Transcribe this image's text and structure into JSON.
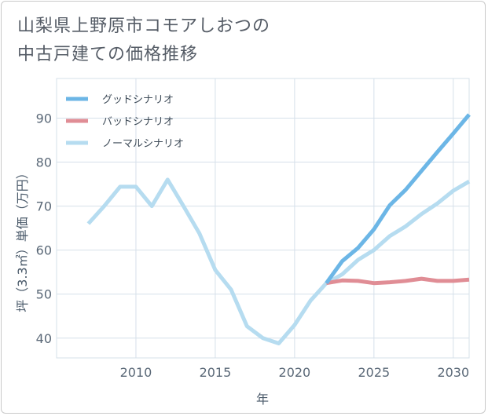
{
  "title": {
    "line1": "山梨県上野原市コモアしおつの",
    "line2": "中古戸建ての価格推移"
  },
  "chart_data": {
    "type": "line",
    "xlabel": "年",
    "ylabel": "坪（3.3㎡）単価（万円）",
    "xlim": [
      2005,
      2031
    ],
    "ylim": [
      35.5,
      99
    ],
    "xticks": [
      2010,
      2015,
      2020,
      2025,
      2030
    ],
    "yticks": [
      40,
      50,
      60,
      70,
      80,
      90
    ],
    "grid": true,
    "legend_position": "top-left",
    "series": [
      {
        "name": "グッドシナリオ",
        "color": "#6cb6e6",
        "x": [
          2022,
          2023,
          2024,
          2025,
          2026,
          2027,
          2028,
          2029,
          2030,
          2031
        ],
        "y": [
          52.5,
          57.5,
          60.5,
          64.7,
          70.2,
          73.7,
          78.0,
          82.3,
          86.5,
          90.8
        ]
      },
      {
        "name": "バッドシナリオ",
        "color": "#e08d95",
        "x": [
          2022,
          2023,
          2024,
          2025,
          2026,
          2027,
          2028,
          2029,
          2030,
          2031
        ],
        "y": [
          52.5,
          53.1,
          53.0,
          52.5,
          52.7,
          53.0,
          53.5,
          53.0,
          53.0,
          53.3
        ]
      },
      {
        "name": "ノーマルシナリオ",
        "color": "#b6dcf0",
        "x": [
          2007,
          2008,
          2009,
          2010,
          2011,
          2012,
          2013,
          2014,
          2015,
          2016,
          2017,
          2018,
          2019,
          2020,
          2021,
          2022,
          2023,
          2024,
          2025,
          2026,
          2027,
          2028,
          2029,
          2030,
          2031
        ],
        "y": [
          66.0,
          70.0,
          74.4,
          74.4,
          70.0,
          76.0,
          70.0,
          63.8,
          55.5,
          51.0,
          42.7,
          40.0,
          38.8,
          43.0,
          48.5,
          52.5,
          54.5,
          57.8,
          60.0,
          63.2,
          65.4,
          68.2,
          70.6,
          73.5,
          75.6
        ]
      }
    ]
  }
}
